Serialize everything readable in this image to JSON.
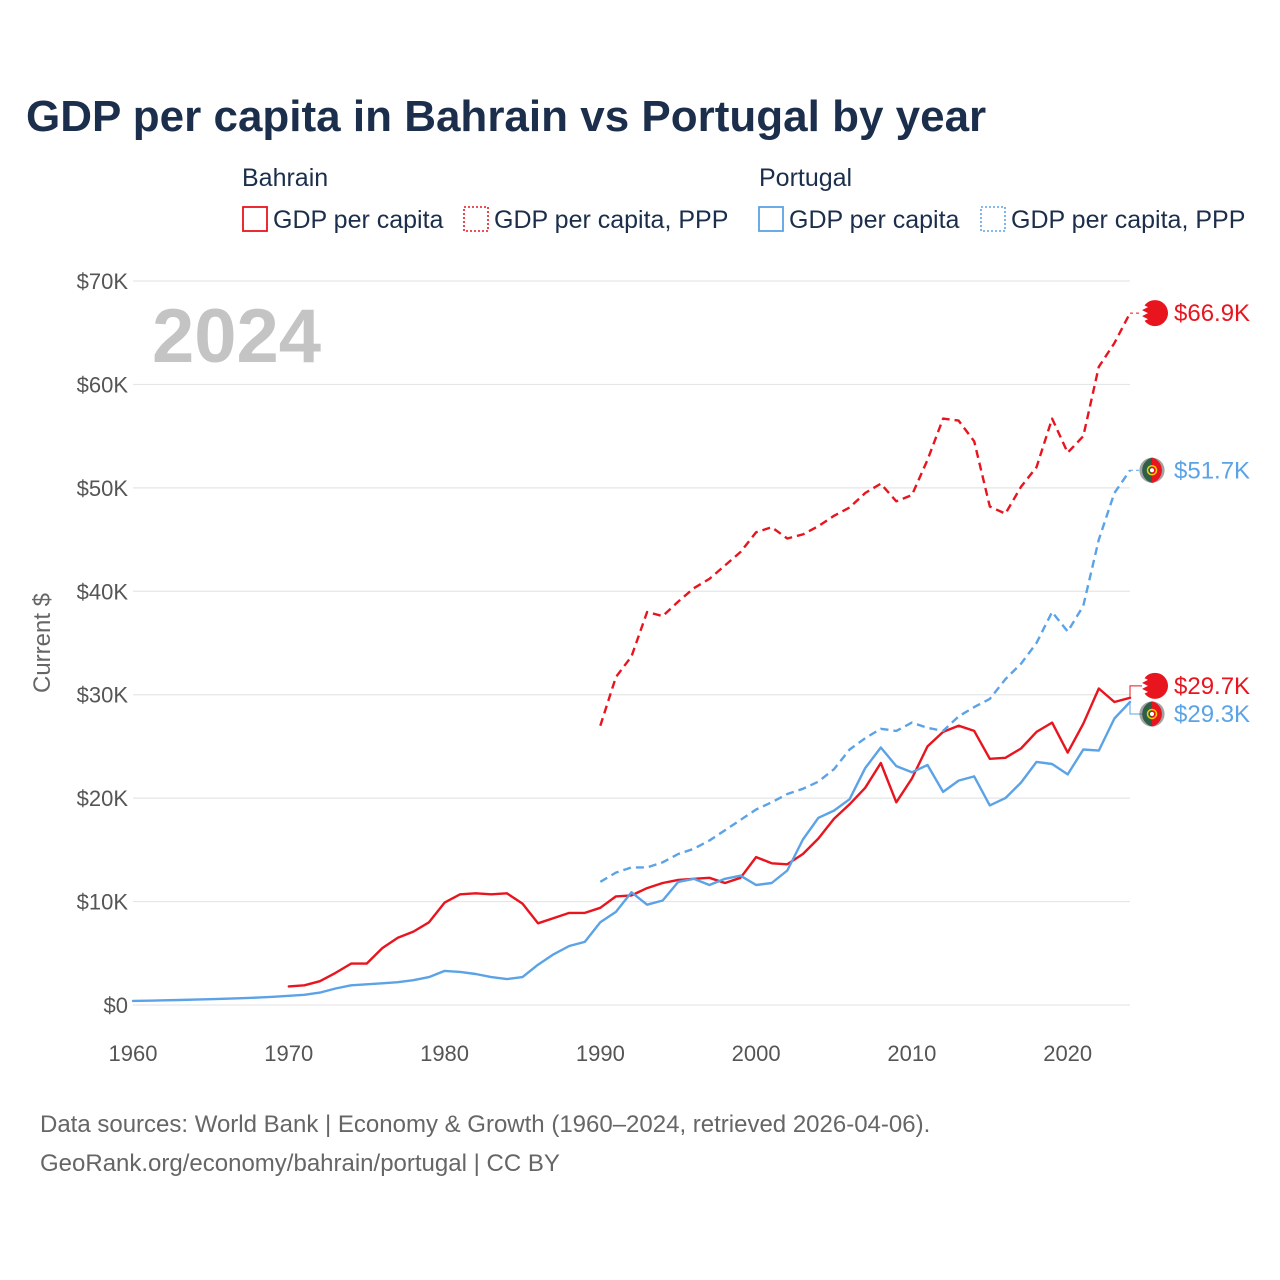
{
  "colors": {
    "bahrain": "#e8141e",
    "portugal": "#5ba3e6",
    "grid": "#e6e6e6",
    "title": "#1b2e4b"
  },
  "chart_data": {
    "type": "line",
    "title": "GDP per capita in Bahrain vs Portugal by year",
    "ylabel": "Current $",
    "year_display": "2024",
    "xlim": [
      1960,
      2024
    ],
    "ylim": [
      0,
      70000
    ],
    "x_ticks": [
      1960,
      1970,
      1980,
      1990,
      2000,
      2010,
      2020
    ],
    "x_tick_labels": [
      "1960",
      "1970",
      "1980",
      "1990",
      "2000",
      "2010",
      "2020"
    ],
    "y_ticks": [
      0,
      10000,
      20000,
      30000,
      40000,
      50000,
      60000,
      70000
    ],
    "y_tick_labels": [
      "$0",
      "$10K",
      "$20K",
      "$30K",
      "$40K",
      "$50K",
      "$60K",
      "$70K"
    ],
    "legend": {
      "groups": [
        {
          "name": "Bahrain",
          "entries": [
            {
              "label": "GDP per capita",
              "style": "solid",
              "color": "bahrain"
            },
            {
              "label": "GDP per capita, PPP",
              "style": "dotted",
              "color": "bahrain"
            }
          ]
        },
        {
          "name": "Portugal",
          "entries": [
            {
              "label": "GDP per capita",
              "style": "solid",
              "color": "portugal"
            },
            {
              "label": "GDP per capita, PPP",
              "style": "dotted",
              "color": "portugal"
            }
          ]
        }
      ]
    },
    "series": [
      {
        "name": "Bahrain GDP per capita",
        "country": "bahrain",
        "dash": false,
        "end_label": "$29.7K",
        "x": [
          1970,
          1971,
          1972,
          1973,
          1974,
          1975,
          1976,
          1977,
          1978,
          1979,
          1980,
          1981,
          1982,
          1983,
          1984,
          1985,
          1986,
          1987,
          1988,
          1989,
          1990,
          1991,
          1992,
          1993,
          1994,
          1995,
          1996,
          1997,
          1998,
          1999,
          2000,
          2001,
          2002,
          2003,
          2004,
          2005,
          2006,
          2007,
          2008,
          2009,
          2010,
          2011,
          2012,
          2013,
          2014,
          2015,
          2016,
          2017,
          2018,
          2019,
          2020,
          2021,
          2022,
          2023,
          2024
        ],
        "values": [
          1800,
          1900,
          2300,
          3100,
          4000,
          4000,
          5500,
          6500,
          7100,
          8000,
          9900,
          10700,
          10800,
          10700,
          10800,
          9800,
          7900,
          8400,
          8900,
          8900,
          9400,
          10500,
          10600,
          11300,
          11800,
          12100,
          12200,
          12300,
          11800,
          12300,
          14300,
          13700,
          13600,
          14600,
          16100,
          18000,
          19400,
          21000,
          23400,
          19600,
          21900,
          25000,
          26400,
          27000,
          26500,
          23800,
          23900,
          24800,
          26400,
          27300,
          24400,
          27200,
          30600,
          29300,
          29700
        ]
      },
      {
        "name": "Bahrain GDP per capita, PPP",
        "country": "bahrain",
        "dash": true,
        "end_label": "$66.9K",
        "x": [
          1990,
          1991,
          1992,
          1993,
          1994,
          1995,
          1996,
          1997,
          1998,
          1999,
          2000,
          2001,
          2002,
          2003,
          2004,
          2005,
          2006,
          2007,
          2008,
          2009,
          2010,
          2011,
          2012,
          2013,
          2014,
          2015,
          2016,
          2017,
          2018,
          2019,
          2020,
          2021,
          2022,
          2023,
          2024
        ],
        "values": [
          27000,
          31700,
          33700,
          38000,
          37600,
          39000,
          40300,
          41200,
          42500,
          43800,
          45700,
          46200,
          45100,
          45500,
          46300,
          47300,
          48100,
          49500,
          50400,
          48700,
          49300,
          52700,
          56700,
          56500,
          54500,
          48200,
          47500,
          50100,
          52000,
          56700,
          53400,
          55000,
          61700,
          64000,
          66900
        ]
      },
      {
        "name": "Portugal GDP per capita",
        "country": "portugal",
        "dash": false,
        "end_label": "$29.3K",
        "x": [
          1960,
          1961,
          1962,
          1963,
          1964,
          1965,
          1966,
          1967,
          1968,
          1969,
          1970,
          1971,
          1972,
          1973,
          1974,
          1975,
          1976,
          1977,
          1978,
          1979,
          1980,
          1981,
          1982,
          1983,
          1984,
          1985,
          1986,
          1987,
          1988,
          1989,
          1990,
          1991,
          1992,
          1993,
          1994,
          1995,
          1996,
          1997,
          1998,
          1999,
          2000,
          2001,
          2002,
          2003,
          2004,
          2005,
          2006,
          2007,
          2008,
          2009,
          2010,
          2011,
          2012,
          2013,
          2014,
          2015,
          2016,
          2017,
          2018,
          2019,
          2020,
          2021,
          2022,
          2023,
          2024
        ],
        "values": [
          400,
          420,
          450,
          480,
          520,
          560,
          610,
          660,
          720,
          790,
          890,
          990,
          1200,
          1600,
          1900,
          2000,
          2100,
          2200,
          2400,
          2700,
          3300,
          3200,
          3000,
          2700,
          2500,
          2700,
          3900,
          4900,
          5700,
          6100,
          8000,
          9000,
          10900,
          9700,
          10100,
          11900,
          12200,
          11600,
          12200,
          12500,
          11600,
          11800,
          13000,
          16000,
          18100,
          18800,
          19900,
          22900,
          24900,
          23100,
          22500,
          23200,
          20600,
          21700,
          22100,
          19300,
          20000,
          21500,
          23500,
          23300,
          22300,
          24700,
          24600,
          27700,
          29300
        ]
      },
      {
        "name": "Portugal GDP per capita, PPP",
        "country": "portugal",
        "dash": true,
        "end_label": "$51.7K",
        "x": [
          1990,
          1991,
          1992,
          1993,
          1994,
          1995,
          1996,
          1997,
          1998,
          1999,
          2000,
          2001,
          2002,
          2003,
          2004,
          2005,
          2006,
          2007,
          2008,
          2009,
          2010,
          2011,
          2012,
          2013,
          2014,
          2015,
          2016,
          2017,
          2018,
          2019,
          2020,
          2021,
          2022,
          2023,
          2024
        ],
        "values": [
          11900,
          12800,
          13300,
          13300,
          13800,
          14600,
          15100,
          15900,
          16900,
          17900,
          18900,
          19600,
          20400,
          20900,
          21600,
          22800,
          24700,
          25800,
          26700,
          26500,
          27300,
          26800,
          26500,
          27900,
          28800,
          29600,
          31500,
          33000,
          35000,
          38000,
          36100,
          38600,
          45000,
          49500,
          51700
        ]
      }
    ],
    "source_lines": [
      "Data sources: World Bank | Economy & Growth (1960–2024, retrieved 2026-04-06).",
      "GeoRank.org/economy/bahrain/portugal | CC BY"
    ]
  }
}
